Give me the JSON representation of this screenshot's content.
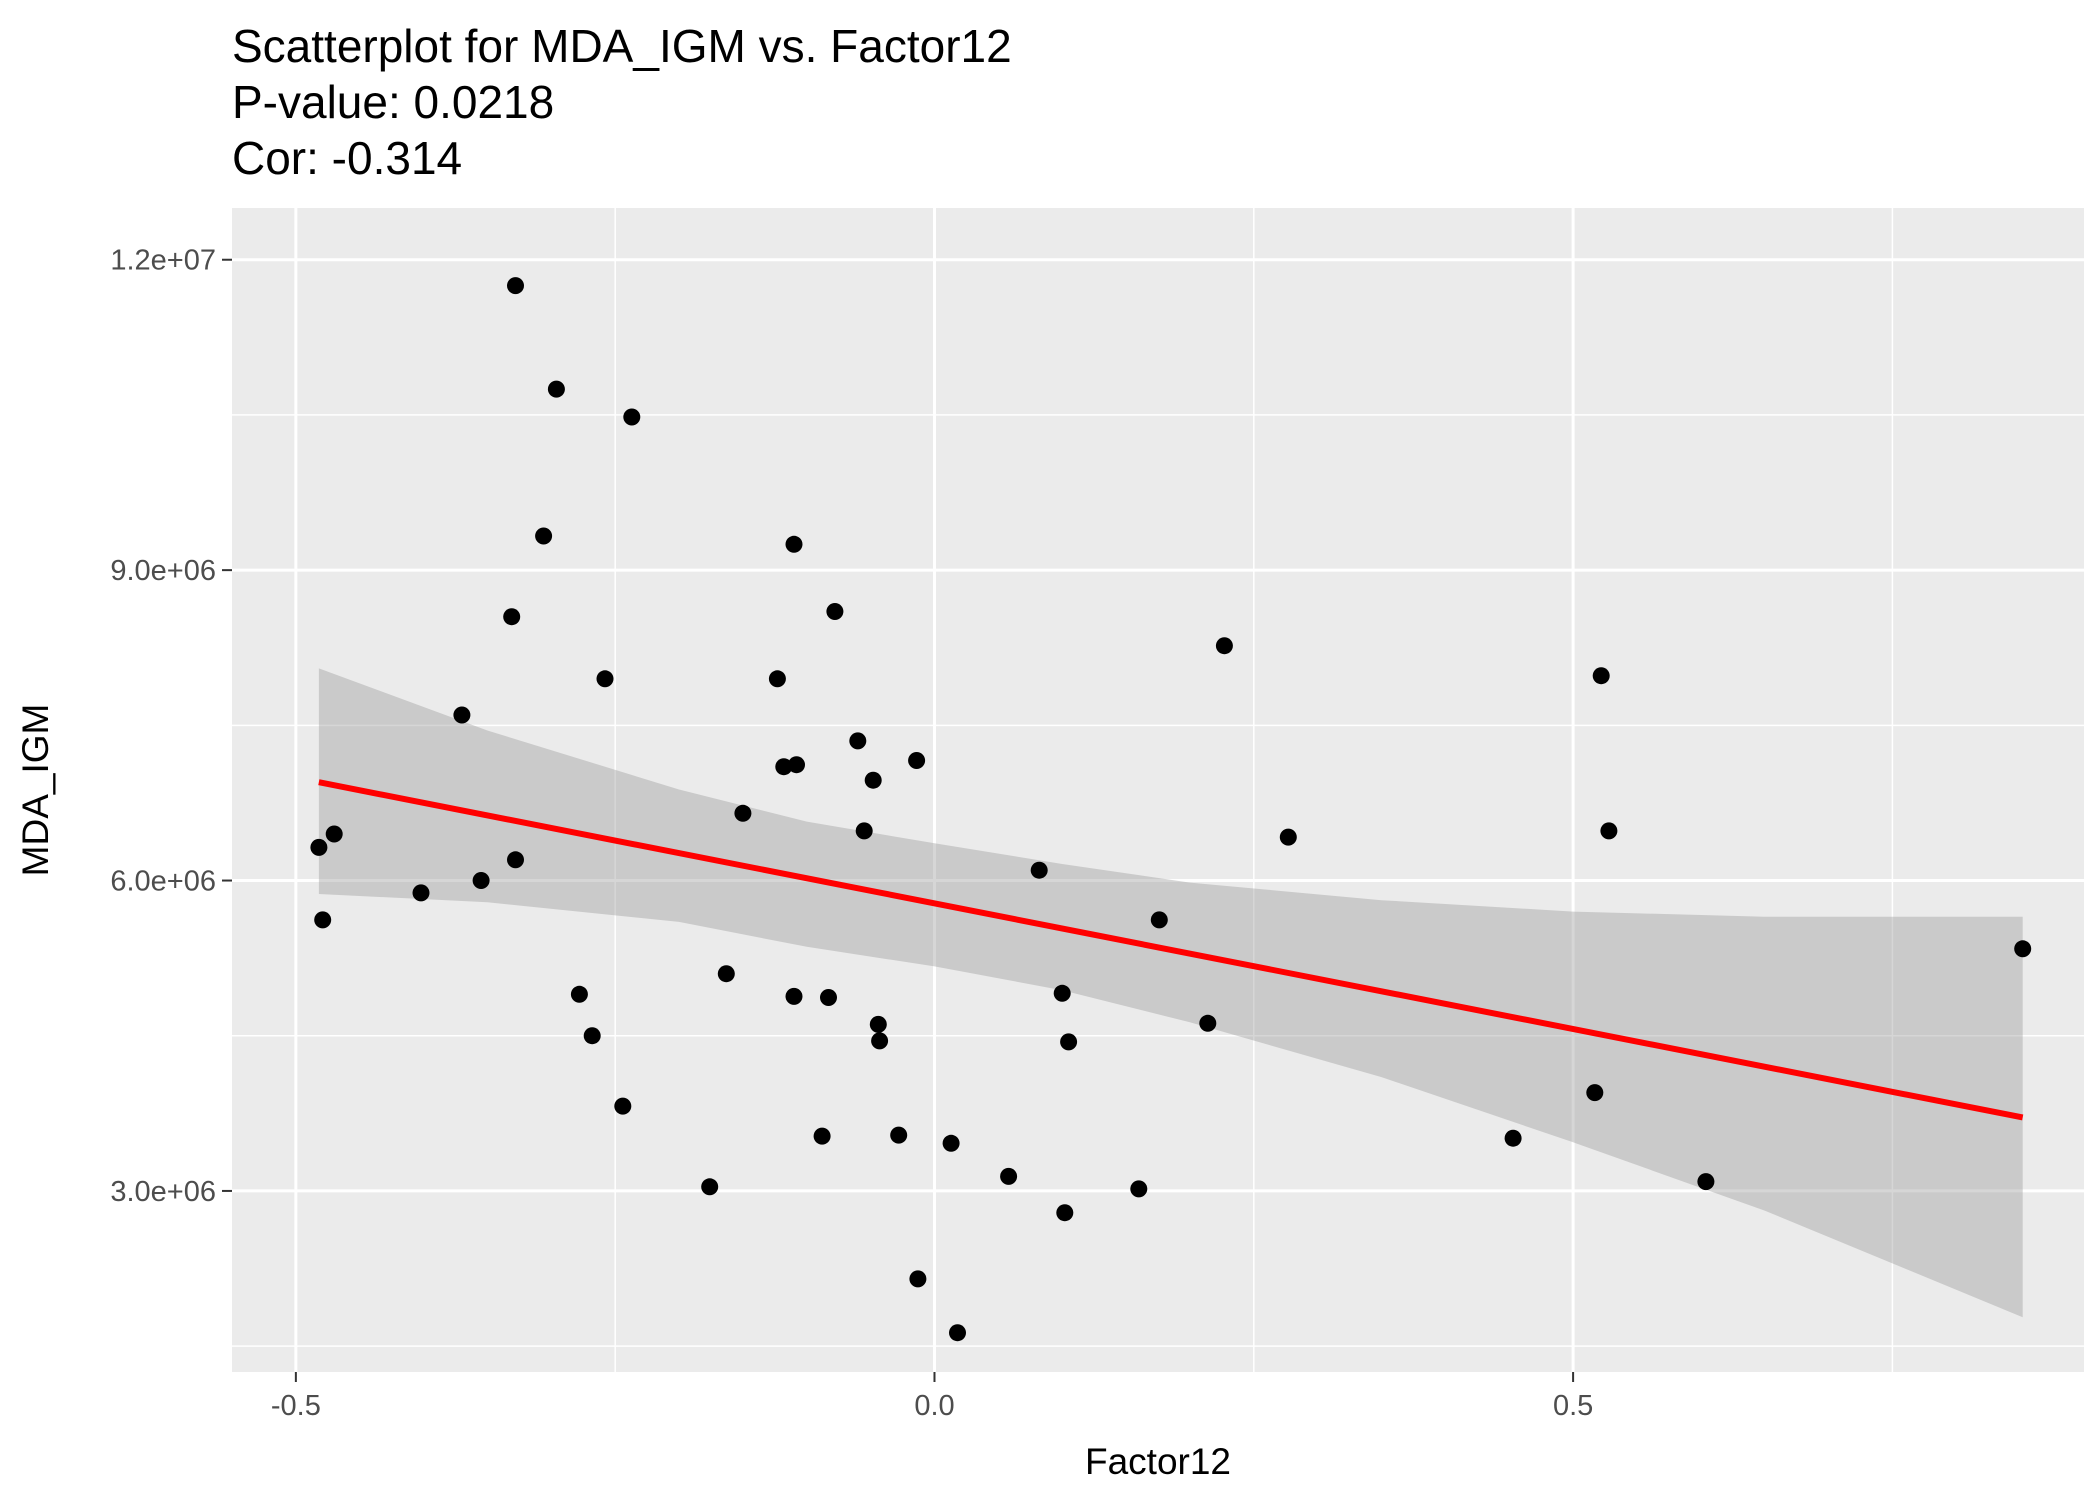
{
  "chart_data": {
    "type": "scatter",
    "title": "Scatterplot for MDA_IGM vs. Factor12",
    "subtitle_lines": [
      "P-value: 0.0218",
      "Cor: -0.314"
    ],
    "xlabel": "Factor12",
    "ylabel": "MDA_IGM",
    "xlim": [
      -0.55,
      0.9
    ],
    "ylim": [
      1250000,
      12500000
    ],
    "x_ticks": [
      {
        "value": -0.5,
        "label": "-0.5"
      },
      {
        "value": 0.0,
        "label": "0.0"
      },
      {
        "value": 0.5,
        "label": "0.5"
      }
    ],
    "x_minor_ticks": [
      -0.25,
      0.25,
      0.75
    ],
    "y_ticks": [
      {
        "value": 3000000,
        "label": "3.0e+06"
      },
      {
        "value": 6000000,
        "label": "6.0e+06"
      },
      {
        "value": 9000000,
        "label": "9.0e+06"
      },
      {
        "value": 12000000,
        "label": "1.2e+07"
      }
    ],
    "y_minor_ticks": [
      1500000,
      4500000,
      7500000,
      10500000
    ],
    "grid": true,
    "colors": {
      "panel_bg": "#ebebeb",
      "grid": "#ffffff",
      "points": "#000000",
      "fit_line": "#ff0000",
      "confidence_band": "#999999"
    },
    "points": [
      {
        "x": -0.482,
        "y": 6320000
      },
      {
        "x": -0.47,
        "y": 6450000
      },
      {
        "x": -0.479,
        "y": 5620000
      },
      {
        "x": -0.402,
        "y": 5880000
      },
      {
        "x": -0.37,
        "y": 7600000
      },
      {
        "x": -0.355,
        "y": 6000000
      },
      {
        "x": -0.331,
        "y": 8550000
      },
      {
        "x": -0.328,
        "y": 11750000
      },
      {
        "x": -0.328,
        "y": 6200000
      },
      {
        "x": -0.306,
        "y": 9330000
      },
      {
        "x": -0.296,
        "y": 10750000
      },
      {
        "x": -0.278,
        "y": 4900000
      },
      {
        "x": -0.268,
        "y": 4500000
      },
      {
        "x": -0.258,
        "y": 7950000
      },
      {
        "x": -0.244,
        "y": 3820000
      },
      {
        "x": -0.237,
        "y": 10480000
      },
      {
        "x": -0.176,
        "y": 3040000
      },
      {
        "x": -0.163,
        "y": 5100000
      },
      {
        "x": -0.15,
        "y": 6650000
      },
      {
        "x": -0.123,
        "y": 7950000
      },
      {
        "x": -0.118,
        "y": 7100000
      },
      {
        "x": -0.108,
        "y": 7120000
      },
      {
        "x": -0.11,
        "y": 9250000
      },
      {
        "x": -0.11,
        "y": 4880000
      },
      {
        "x": -0.088,
        "y": 3530000
      },
      {
        "x": -0.083,
        "y": 4870000
      },
      {
        "x": -0.078,
        "y": 8600000
      },
      {
        "x": -0.06,
        "y": 7350000
      },
      {
        "x": -0.055,
        "y": 6480000
      },
      {
        "x": -0.048,
        "y": 6970000
      },
      {
        "x": -0.044,
        "y": 4610000
      },
      {
        "x": -0.043,
        "y": 4450000
      },
      {
        "x": -0.028,
        "y": 3540000
      },
      {
        "x": -0.014,
        "y": 7160000
      },
      {
        "x": -0.013,
        "y": 2150000
      },
      {
        "x": 0.013,
        "y": 3460000
      },
      {
        "x": 0.018,
        "y": 1630000
      },
      {
        "x": 0.058,
        "y": 3140000
      },
      {
        "x": 0.082,
        "y": 6100000
      },
      {
        "x": 0.1,
        "y": 4910000
      },
      {
        "x": 0.102,
        "y": 2790000
      },
      {
        "x": 0.105,
        "y": 4440000
      },
      {
        "x": 0.16,
        "y": 3020000
      },
      {
        "x": 0.176,
        "y": 5620000
      },
      {
        "x": 0.214,
        "y": 4620000
      },
      {
        "x": 0.227,
        "y": 8270000
      },
      {
        "x": 0.277,
        "y": 6420000
      },
      {
        "x": 0.453,
        "y": 3510000
      },
      {
        "x": 0.517,
        "y": 3950000
      },
      {
        "x": 0.522,
        "y": 7980000
      },
      {
        "x": 0.528,
        "y": 6480000
      },
      {
        "x": 0.604,
        "y": 3090000
      },
      {
        "x": 0.852,
        "y": 5340000
      }
    ],
    "fit_line": {
      "x": [
        -0.482,
        0.852
      ],
      "y": [
        6950000,
        3710000
      ]
    },
    "confidence_band": {
      "x": [
        -0.482,
        -0.35,
        -0.2,
        -0.1,
        0.0,
        0.1,
        0.2,
        0.35,
        0.5,
        0.65,
        0.852
      ],
      "upper": [
        8050000,
        7450000,
        6880000,
        6570000,
        6360000,
        6160000,
        5980000,
        5810000,
        5700000,
        5650000,
        5650000
      ],
      "lower": [
        5870000,
        5790000,
        5600000,
        5360000,
        5170000,
        4940000,
        4630000,
        4100000,
        3470000,
        2810000,
        1780000
      ]
    }
  }
}
